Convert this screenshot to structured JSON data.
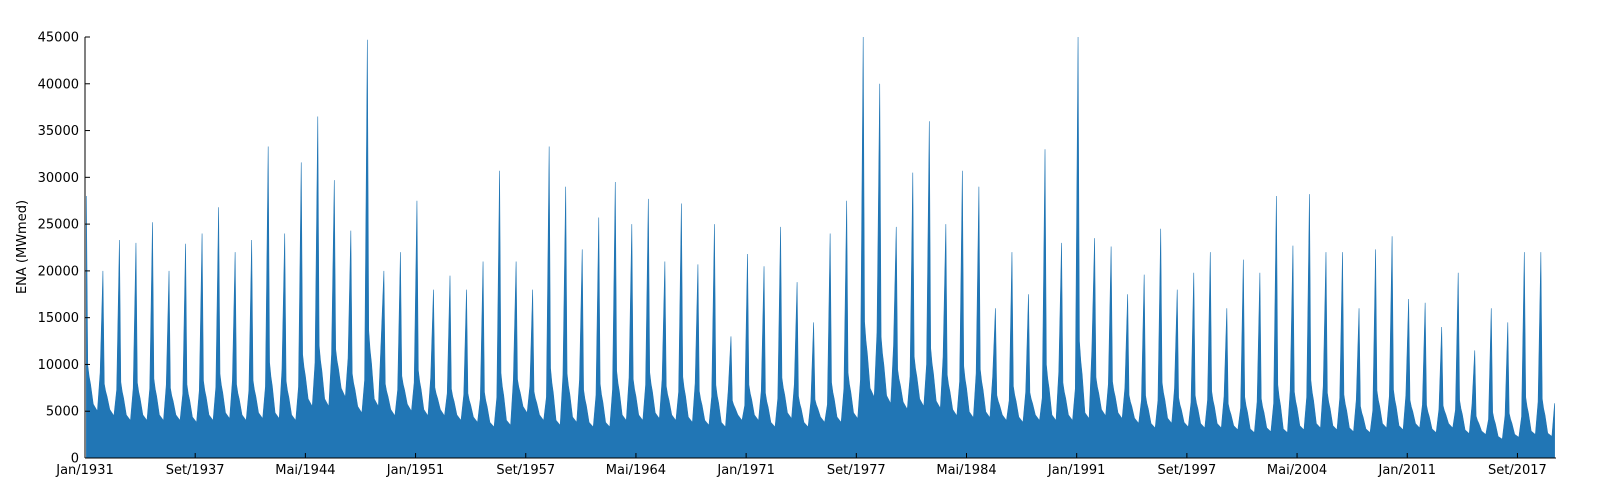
{
  "chart_data": {
    "type": "area",
    "title": "",
    "xlabel": "",
    "ylabel": "ENA (MWmed)",
    "ylim": [
      0,
      45000
    ],
    "xlim": [
      "1931-01",
      "2020-01"
    ],
    "yticks": [
      0,
      5000,
      10000,
      15000,
      20000,
      25000,
      30000,
      35000,
      40000,
      45000
    ],
    "xticks": [
      {
        "date": "1931-01",
        "label": "Jan/1931"
      },
      {
        "date": "1937-09",
        "label": "Set/1937"
      },
      {
        "date": "1944-05",
        "label": "Mai/1944"
      },
      {
        "date": "1951-01",
        "label": "Jan/1951"
      },
      {
        "date": "1957-09",
        "label": "Set/1957"
      },
      {
        "date": "1964-05",
        "label": "Mai/1964"
      },
      {
        "date": "1971-01",
        "label": "Jan/1971"
      },
      {
        "date": "1977-09",
        "label": "Set/1977"
      },
      {
        "date": "1984-05",
        "label": "Mai/1984"
      },
      {
        "date": "1991-01",
        "label": "Jan/1991"
      },
      {
        "date": "1997-09",
        "label": "Set/1997"
      },
      {
        "date": "2004-05",
        "label": "Mai/2004"
      },
      {
        "date": "2011-01",
        "label": "Jan/2011"
      },
      {
        "date": "2017-09",
        "label": "Set/2017"
      }
    ],
    "grid": false,
    "legend": "none",
    "fill_color": "#2176b5",
    "series": [
      {
        "x": [
          "1931-02",
          "1932-02",
          "1933-02",
          "1934-02",
          "1935-02",
          "1936-02",
          "1937-02",
          "1938-02",
          "1939-02",
          "1940-02",
          "1941-02",
          "1942-02",
          "1943-02",
          "1944-02",
          "1945-02",
          "1946-02",
          "1947-02",
          "1948-02",
          "1949-02",
          "1950-02",
          "1951-02",
          "1952-02",
          "1953-02",
          "1954-02",
          "1955-02",
          "1956-02",
          "1957-02",
          "1958-02",
          "1959-02",
          "1960-02",
          "1961-02",
          "1962-02",
          "1963-02",
          "1964-02",
          "1965-02",
          "1966-02",
          "1967-02",
          "1968-02",
          "1969-02",
          "1970-02",
          "1971-02",
          "1972-02",
          "1973-02",
          "1974-02",
          "1975-02",
          "1976-02",
          "1977-02",
          "1978-02",
          "1979-02",
          "1980-02",
          "1981-02",
          "1982-02",
          "1983-02",
          "1984-02",
          "1985-02",
          "1986-02",
          "1987-02",
          "1988-02",
          "1989-02",
          "1990-02",
          "1991-02",
          "1992-02",
          "1993-02",
          "1994-02",
          "1995-02",
          "1996-02",
          "1997-02",
          "1998-02",
          "1999-02",
          "2000-02",
          "2001-02",
          "2002-02",
          "2003-02",
          "2004-02",
          "2005-02",
          "2006-02",
          "2007-02",
          "2008-02",
          "2009-02",
          "2010-02",
          "2011-02",
          "2012-02",
          "2013-02",
          "2014-02",
          "2015-02",
          "2016-02",
          "2017-02",
          "2018-02",
          "2019-02",
          "2020-02"
        ],
        "y": [
          28000,
          20000,
          23300,
          23000,
          25200,
          20000,
          22900,
          24000,
          26800,
          22000,
          23300,
          33300,
          24000,
          31600,
          36500,
          29700,
          24300,
          44700,
          20000,
          22000,
          27500,
          18000,
          19500,
          18000,
          21000,
          30700,
          21000,
          18000,
          33300,
          29000,
          22300,
          25700,
          29500,
          25000,
          27700,
          21000,
          27200,
          20700,
          25000,
          13000,
          21800,
          20500,
          24700,
          18800,
          14500,
          24000,
          27500,
          45000,
          40000,
          24700,
          30500,
          36000,
          25000,
          30700,
          29000,
          16000,
          22000,
          17500,
          33000,
          23000,
          45000,
          23500,
          22600,
          17500,
          19600,
          24500,
          18000,
          19800,
          22000,
          16000,
          21200,
          19800,
          28000,
          22700,
          28200,
          22000,
          22000,
          16000,
          22300,
          23700,
          17000,
          16600,
          14000,
          19800,
          11500,
          16000,
          14500,
          22000,
          22000,
          8500
        ],
        "min": [
          5000,
          4500,
          4000,
          4000,
          4000,
          4000,
          3800,
          4000,
          4200,
          4000,
          4200,
          4200,
          4000,
          5500,
          5500,
          6500,
          4800,
          5500,
          4500,
          5000,
          4500,
          4500,
          4000,
          3800,
          3300,
          3500,
          4800,
          4000,
          3500,
          3800,
          3300,
          3300,
          4000,
          4000,
          4200,
          4000,
          3800,
          3500,
          3300,
          4000,
          4000,
          3300,
          4200,
          3300,
          3800,
          3800,
          4200,
          6500,
          5800,
          5200,
          5500,
          5300,
          4500,
          4300,
          4300,
          4000,
          3800,
          4000,
          4000,
          4000,
          4200,
          4500,
          4200,
          3700,
          3200,
          3700,
          3300,
          3200,
          3200,
          3000,
          2700,
          2800,
          2700,
          3000,
          3200,
          3000,
          2800,
          2700,
          3200,
          3000,
          3200,
          2700,
          3200,
          2600,
          2500,
          2000,
          2200,
          2500,
          2300,
          2900
        ]
      }
    ]
  }
}
